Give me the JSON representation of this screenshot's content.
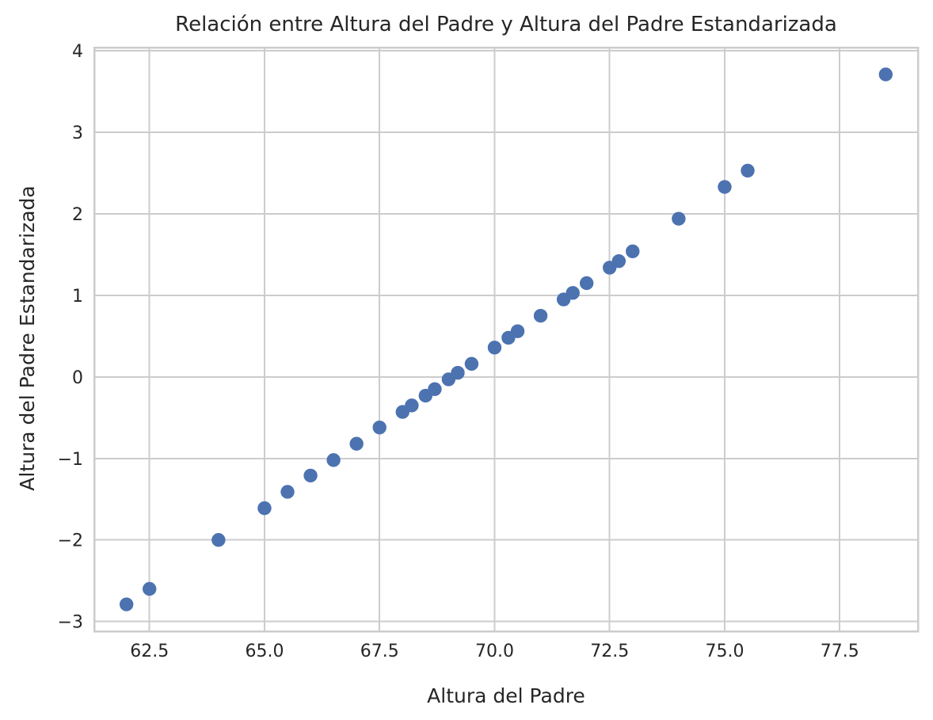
{
  "chart_data": {
    "type": "scatter",
    "title": "Relación entre Altura del Padre y Altura del Padre Estandarizada",
    "xlabel": "Altura del Padre",
    "ylabel": "Altura del Padre Estandarizada",
    "xlim": [
      61.3,
      79.2
    ],
    "ylim": [
      -3.12,
      4.04
    ],
    "grid": true,
    "legend": "none",
    "colors": {
      "marker": "#4c72b0",
      "grid": "#cccccc",
      "text": "#262626"
    },
    "xticks": [
      62.5,
      65.0,
      67.5,
      70.0,
      72.5,
      75.0,
      77.5
    ],
    "xtick_labels": [
      "62.5",
      "65.0",
      "67.5",
      "70.0",
      "72.5",
      "75.0",
      "77.5"
    ],
    "yticks": [
      -3,
      -2,
      -1,
      0,
      1,
      2,
      3,
      4
    ],
    "ytick_labels": [
      "−3",
      "−2",
      "−1",
      "0",
      "1",
      "2",
      "3",
      "4"
    ],
    "series": [
      {
        "points": [
          {
            "x": 62.0,
            "y": -2.79
          },
          {
            "x": 62.5,
            "y": -2.6
          },
          {
            "x": 64.0,
            "y": -2.0
          },
          {
            "x": 65.0,
            "y": -1.61
          },
          {
            "x": 65.5,
            "y": -1.41
          },
          {
            "x": 66.0,
            "y": -1.21
          },
          {
            "x": 66.5,
            "y": -1.02
          },
          {
            "x": 67.0,
            "y": -0.82
          },
          {
            "x": 67.5,
            "y": -0.62
          },
          {
            "x": 68.0,
            "y": -0.43
          },
          {
            "x": 68.2,
            "y": -0.35
          },
          {
            "x": 68.5,
            "y": -0.23
          },
          {
            "x": 68.7,
            "y": -0.15
          },
          {
            "x": 69.0,
            "y": -0.03
          },
          {
            "x": 69.2,
            "y": 0.05
          },
          {
            "x": 69.5,
            "y": 0.16
          },
          {
            "x": 70.0,
            "y": 0.36
          },
          {
            "x": 70.3,
            "y": 0.48
          },
          {
            "x": 70.5,
            "y": 0.56
          },
          {
            "x": 71.0,
            "y": 0.75
          },
          {
            "x": 71.5,
            "y": 0.95
          },
          {
            "x": 71.7,
            "y": 1.03
          },
          {
            "x": 72.0,
            "y": 1.15
          },
          {
            "x": 72.5,
            "y": 1.34
          },
          {
            "x": 72.7,
            "y": 1.42
          },
          {
            "x": 73.0,
            "y": 1.54
          },
          {
            "x": 74.0,
            "y": 1.94
          },
          {
            "x": 75.0,
            "y": 2.33
          },
          {
            "x": 75.5,
            "y": 2.53
          },
          {
            "x": 78.5,
            "y": 3.71
          }
        ]
      }
    ]
  }
}
